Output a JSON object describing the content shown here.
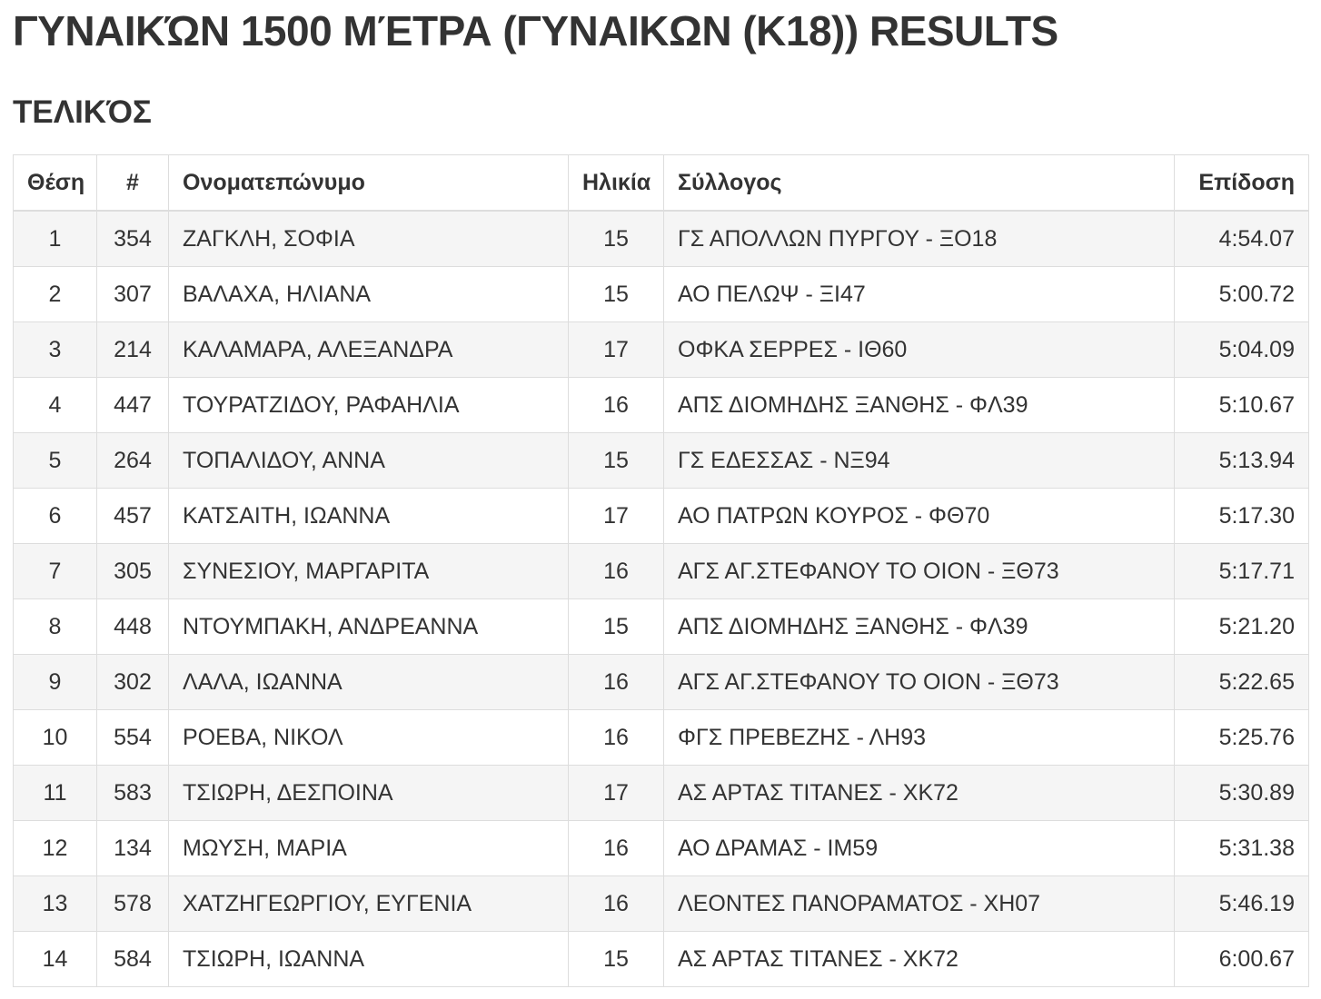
{
  "page": {
    "title": "ΓΥΝΑΙΚΏΝ 1500 ΜΈΤΡΑ (ΓΥΝΑΙΚΩΝ (Κ18)) RESULTS",
    "subtitle": "ΤΕΛΙΚΌΣ"
  },
  "colors": {
    "text": "#333333",
    "border": "#dddddd",
    "row_stripe": "#f5f5f5",
    "background": "#ffffff"
  },
  "results_table": {
    "columns": [
      {
        "key": "position",
        "label": "Θέση",
        "align": "center"
      },
      {
        "key": "bib",
        "label": "#",
        "align": "center"
      },
      {
        "key": "name",
        "label": "Ονοματεπώνυμο",
        "align": "left"
      },
      {
        "key": "age",
        "label": "Ηλικία",
        "align": "center"
      },
      {
        "key": "club",
        "label": "Σύλλογος",
        "align": "left"
      },
      {
        "key": "performance",
        "label": "Επίδοση",
        "align": "right"
      }
    ],
    "rows": [
      {
        "position": "1",
        "bib": "354",
        "name": "ΖΑΓΚΛΗ, ΣΟΦΙΑ",
        "age": "15",
        "club": "ΓΣ ΑΠΟΛΛΩΝ ΠΥΡΓΟΥ - ΞΟ18",
        "performance": "4:54.07"
      },
      {
        "position": "2",
        "bib": "307",
        "name": "ΒΑΛΑΧΑ, ΗΛΙΑΝΑ",
        "age": "15",
        "club": "ΑΟ ΠΕΛΩΨ - ΞΙ47",
        "performance": "5:00.72"
      },
      {
        "position": "3",
        "bib": "214",
        "name": "ΚΑΛΑΜΑΡΑ, ΑΛΕΞΑΝΔΡΑ",
        "age": "17",
        "club": "ΟΦΚΑ ΣΕΡΡΕΣ - ΙΘ60",
        "performance": "5:04.09"
      },
      {
        "position": "4",
        "bib": "447",
        "name": "ΤΟΥΡΑΤΖΙΔΟΥ, ΡΑΦΑΗΛΙΑ",
        "age": "16",
        "club": "ΑΠΣ ΔΙΟΜΗΔΗΣ ΞΑΝΘΗΣ - ΦΛ39",
        "performance": "5:10.67"
      },
      {
        "position": "5",
        "bib": "264",
        "name": "ΤΟΠΑΛΙΔΟΥ, ΑΝΝΑ",
        "age": "15",
        "club": "ΓΣ ΕΔΕΣΣΑΣ - ΝΞ94",
        "performance": "5:13.94"
      },
      {
        "position": "6",
        "bib": "457",
        "name": "ΚΑΤΣΑΙΤΗ, ΙΩΑΝΝΑ",
        "age": "17",
        "club": "ΑΟ ΠΑΤΡΩΝ ΚΟΥΡΟΣ - ΦΘ70",
        "performance": "5:17.30"
      },
      {
        "position": "7",
        "bib": "305",
        "name": "ΣΥΝΕΣΙΟΥ, ΜΑΡΓΑΡΙΤΑ",
        "age": "16",
        "club": "ΑΓΣ ΑΓ.ΣΤΕΦΑΝΟΥ ΤΟ ΟΙΟΝ - ΞΘ73",
        "performance": "5:17.71"
      },
      {
        "position": "8",
        "bib": "448",
        "name": "ΝΤΟΥΜΠΑΚΗ, ΑΝΔΡΕΑΝΝΑ",
        "age": "15",
        "club": "ΑΠΣ ΔΙΟΜΗΔΗΣ ΞΑΝΘΗΣ - ΦΛ39",
        "performance": "5:21.20"
      },
      {
        "position": "9",
        "bib": "302",
        "name": "ΛΑΛΑ, ΙΩΑΝΝΑ",
        "age": "16",
        "club": "ΑΓΣ ΑΓ.ΣΤΕΦΑΝΟΥ ΤΟ ΟΙΟΝ - ΞΘ73",
        "performance": "5:22.65"
      },
      {
        "position": "10",
        "bib": "554",
        "name": "ΡΟΕΒΑ, ΝΙΚΟΛ",
        "age": "16",
        "club": "ΦΓΣ ΠΡΕΒΕΖΗΣ - ΛΗ93",
        "performance": "5:25.76"
      },
      {
        "position": "11",
        "bib": "583",
        "name": "ΤΣΙΩΡΗ, ΔΕΣΠΟΙΝΑ",
        "age": "17",
        "club": "ΑΣ ΑΡΤΑΣ ΤΙΤΑΝΕΣ - ΧΚ72",
        "performance": "5:30.89"
      },
      {
        "position": "12",
        "bib": "134",
        "name": "ΜΩΥΣΗ, ΜΑΡΙΑ",
        "age": "16",
        "club": "ΑΟ ΔΡΑΜΑΣ - ΙΜ59",
        "performance": "5:31.38"
      },
      {
        "position": "13",
        "bib": "578",
        "name": "ΧΑΤΖΗΓΕΩΡΓΙΟΥ, ΕΥΓΕΝΙΑ",
        "age": "16",
        "club": "ΛΕΟΝΤΕΣ ΠΑΝΟΡΑΜΑΤΟΣ - ΧΗ07",
        "performance": "5:46.19"
      },
      {
        "position": "14",
        "bib": "584",
        "name": "ΤΣΙΩΡΗ, ΙΩΑΝΝΑ",
        "age": "15",
        "club": "ΑΣ ΑΡΤΑΣ ΤΙΤΑΝΕΣ - ΧΚ72",
        "performance": "6:00.67"
      }
    ]
  }
}
